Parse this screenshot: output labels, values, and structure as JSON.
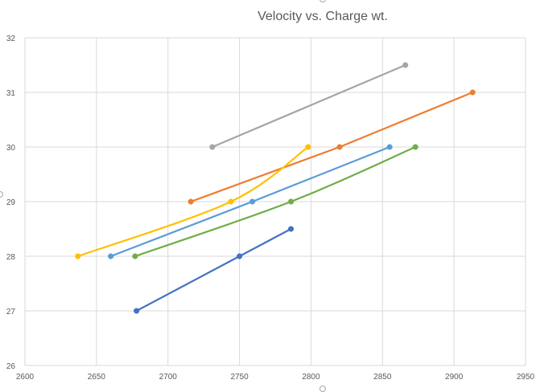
{
  "chart_data": {
    "type": "scatter",
    "title": "Velocity vs. Charge wt.",
    "xlabel": "",
    "ylabel": "",
    "xlim": [
      2600,
      2950
    ],
    "ylim": [
      26,
      32
    ],
    "x_ticks": [
      2600,
      2650,
      2700,
      2750,
      2800,
      2850,
      2900,
      2950
    ],
    "y_ticks": [
      26,
      27,
      28,
      29,
      30,
      31,
      32
    ],
    "grid": true,
    "legend": "none",
    "series": [
      {
        "color": "#4472C4",
        "smooth": false,
        "points": [
          [
            2678,
            27
          ],
          [
            2750,
            28
          ],
          [
            2786,
            28.5
          ]
        ]
      },
      {
        "color": "#ED7D31",
        "smooth": false,
        "points": [
          [
            2716,
            29
          ],
          [
            2820,
            30
          ],
          [
            2913,
            31
          ]
        ]
      },
      {
        "color": "#A5A5A5",
        "smooth": false,
        "points": [
          [
            2731,
            30
          ],
          [
            2866,
            31.5
          ]
        ]
      },
      {
        "color": "#FFC000",
        "smooth": true,
        "points": [
          [
            2637,
            28
          ],
          [
            2744,
            29
          ],
          [
            2798,
            30
          ]
        ]
      },
      {
        "color": "#5B9BD5",
        "smooth": false,
        "points": [
          [
            2660,
            28
          ],
          [
            2759,
            29
          ],
          [
            2855,
            30
          ]
        ]
      },
      {
        "color": "#70AD47",
        "smooth": true,
        "points": [
          [
            2677,
            28
          ],
          [
            2786,
            29
          ],
          [
            2873,
            30
          ]
        ]
      }
    ]
  }
}
